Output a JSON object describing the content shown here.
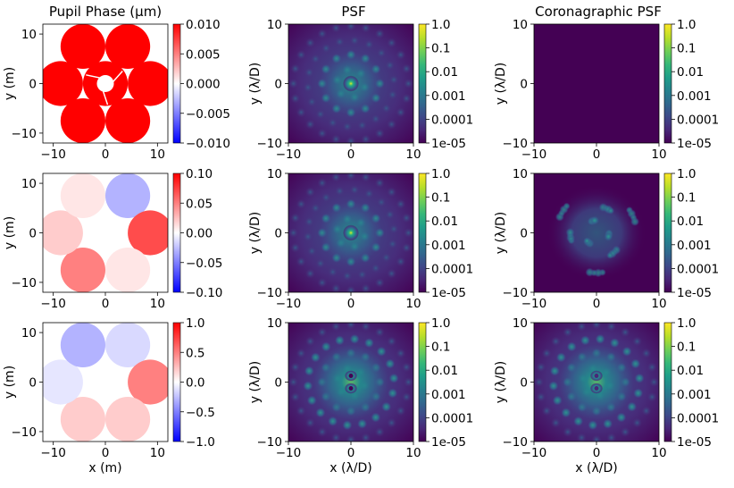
{
  "figure": {
    "column_titles": [
      "Pupil Phase (μm)",
      "PSF",
      "Coronagraphic PSF"
    ]
  },
  "colors": {
    "diverging": [
      "#0000ff",
      "#ffffff",
      "#ff0000"
    ],
    "viridis": [
      "#440154",
      "#482878",
      "#3e4989",
      "#31688e",
      "#26828e",
      "#1f9e89",
      "#35b779",
      "#6ece58",
      "#b5de2b",
      "#fde725"
    ]
  },
  "chart_data": [
    {
      "panel": "pupil-phase-row1",
      "type": "heatmap",
      "title": "Pupil Phase (μm)",
      "xlabel": "",
      "ylabel": "y (m)",
      "xlim": [
        -12,
        12
      ],
      "ylim": [
        -12,
        12
      ],
      "xticks": [
        "−10",
        "0",
        "10"
      ],
      "yticks": [
        "10",
        "0",
        "−10"
      ],
      "colorbar": {
        "cmap": "bwr",
        "range": [
          -0.01,
          0.01
        ],
        "ticks": [
          "0.010",
          "0.005",
          "0.000",
          "−0.005",
          "−0.010"
        ]
      },
      "segments": [
        {
          "x": 0,
          "y": 0,
          "value": 0.01
        },
        {
          "x": 4.3,
          "y": 7.5,
          "value": 0.01
        },
        {
          "x": 8.6,
          "y": 0,
          "value": 0.01
        },
        {
          "x": 4.3,
          "y": -7.5,
          "value": 0.01
        },
        {
          "x": -4.3,
          "y": -7.5,
          "value": 0.01
        },
        {
          "x": -8.6,
          "y": 0,
          "value": 0.01
        },
        {
          "x": -4.3,
          "y": 7.5,
          "value": 0.01
        }
      ]
    },
    {
      "panel": "psf-row1",
      "type": "heatmap",
      "title": "PSF",
      "xlabel": "",
      "ylabel": "y (λ/D)",
      "xlim": [
        -10,
        10
      ],
      "ylim": [
        -10,
        10
      ],
      "xticks": [
        "−10",
        "0",
        "10"
      ],
      "yticks": [
        "10",
        "0",
        "−10"
      ],
      "colorbar": {
        "cmap": "viridis",
        "scale": "log",
        "range": [
          1e-05,
          1
        ],
        "ticks": [
          "1.0",
          "0.1",
          "0.01",
          "0.001",
          "0.0001",
          "1e-05"
        ]
      }
    },
    {
      "panel": "coro-psf-row1",
      "type": "heatmap",
      "title": "Coronagraphic PSF",
      "xlabel": "",
      "ylabel": "y (λ/D)",
      "xlim": [
        -10,
        10
      ],
      "ylim": [
        -10,
        10
      ],
      "xticks": [
        "−10",
        "0",
        "10"
      ],
      "yticks": [
        "10",
        "0",
        "−10"
      ],
      "colorbar": {
        "cmap": "viridis",
        "scale": "log",
        "range": [
          1e-05,
          1
        ],
        "ticks": [
          "1.0",
          "0.1",
          "0.01",
          "0.001",
          "0.0001",
          "1e-05"
        ]
      }
    },
    {
      "panel": "pupil-phase-row2",
      "type": "heatmap",
      "title": "",
      "xlabel": "",
      "ylabel": "y (m)",
      "xlim": [
        -12,
        12
      ],
      "ylim": [
        -12,
        12
      ],
      "xticks": [
        "−10",
        "0",
        "10"
      ],
      "yticks": [
        "10",
        "0",
        "−10"
      ],
      "colorbar": {
        "cmap": "bwr",
        "range": [
          -0.1,
          0.1
        ],
        "ticks": [
          "0.10",
          "0.05",
          "0.00",
          "−0.05",
          "−0.10"
        ]
      },
      "segments": [
        {
          "x": 0,
          "y": 0,
          "value": 0.0
        },
        {
          "x": 4.3,
          "y": 7.5,
          "value": -0.03
        },
        {
          "x": 8.6,
          "y": 0,
          "value": 0.07
        },
        {
          "x": 4.3,
          "y": -7.5,
          "value": 0.01
        },
        {
          "x": -4.3,
          "y": -7.5,
          "value": 0.05
        },
        {
          "x": -8.6,
          "y": 0,
          "value": 0.02
        },
        {
          "x": -4.3,
          "y": 7.5,
          "value": 0.01
        }
      ]
    },
    {
      "panel": "psf-row2",
      "type": "heatmap",
      "title": "",
      "xlabel": "",
      "ylabel": "y (λ/D)",
      "xlim": [
        -10,
        10
      ],
      "ylim": [
        -10,
        10
      ],
      "xticks": [
        "−10",
        "0",
        "10"
      ],
      "yticks": [
        "10",
        "0",
        "−10"
      ],
      "colorbar": {
        "cmap": "viridis",
        "scale": "log",
        "range": [
          1e-05,
          1
        ],
        "ticks": [
          "1.0",
          "0.1",
          "0.01",
          "0.001",
          "0.0001",
          "1e-05"
        ]
      }
    },
    {
      "panel": "coro-psf-row2",
      "type": "heatmap",
      "title": "",
      "xlabel": "",
      "ylabel": "y (λ/D)",
      "xlim": [
        -10,
        10
      ],
      "ylim": [
        -10,
        10
      ],
      "xticks": [
        "−10",
        "0",
        "10"
      ],
      "yticks": [
        "10",
        "0",
        "−10"
      ],
      "colorbar": {
        "cmap": "viridis",
        "scale": "log",
        "range": [
          1e-05,
          1
        ],
        "ticks": [
          "1.0",
          "0.1",
          "0.01",
          "0.001",
          "0.0001",
          "1e-05"
        ]
      }
    },
    {
      "panel": "pupil-phase-row3",
      "type": "heatmap",
      "title": "",
      "xlabel": "x (m)",
      "ylabel": "y (m)",
      "xlim": [
        -12,
        12
      ],
      "ylim": [
        -12,
        12
      ],
      "xticks": [
        "−10",
        "0",
        "10"
      ],
      "yticks": [
        "10",
        "0",
        "−10"
      ],
      "colorbar": {
        "cmap": "bwr",
        "range": [
          -1,
          1
        ],
        "ticks": [
          "1.0",
          "0.5",
          "0.0",
          "−0.5",
          "−1.0"
        ]
      },
      "segments": [
        {
          "x": 0,
          "y": 0,
          "value": 0.0
        },
        {
          "x": 4.3,
          "y": 7.5,
          "value": -0.15
        },
        {
          "x": 8.6,
          "y": 0,
          "value": 0.5
        },
        {
          "x": 4.3,
          "y": -7.5,
          "value": 0.2
        },
        {
          "x": -4.3,
          "y": -7.5,
          "value": 0.2
        },
        {
          "x": -8.6,
          "y": 0,
          "value": -0.1
        },
        {
          "x": -4.3,
          "y": 7.5,
          "value": -0.3
        }
      ]
    },
    {
      "panel": "psf-row3",
      "type": "heatmap",
      "title": "",
      "xlabel": "x (λ/D)",
      "ylabel": "y (λ/D)",
      "xlim": [
        -10,
        10
      ],
      "ylim": [
        -10,
        10
      ],
      "xticks": [
        "−10",
        "0",
        "10"
      ],
      "yticks": [
        "10",
        "0",
        "−10"
      ],
      "colorbar": {
        "cmap": "viridis",
        "scale": "log",
        "range": [
          1e-05,
          1
        ],
        "ticks": [
          "1.0",
          "0.1",
          "0.01",
          "0.001",
          "0.0001",
          "1e-05"
        ]
      }
    },
    {
      "panel": "coro-psf-row3",
      "type": "heatmap",
      "title": "",
      "xlabel": "x (λ/D)",
      "ylabel": "y (λ/D)",
      "xlim": [
        -10,
        10
      ],
      "ylim": [
        -10,
        10
      ],
      "xticks": [
        "−10",
        "0",
        "10"
      ],
      "yticks": [
        "10",
        "0",
        "−10"
      ],
      "colorbar": {
        "cmap": "viridis",
        "scale": "log",
        "range": [
          1e-05,
          1
        ],
        "ticks": [
          "1.0",
          "0.1",
          "0.01",
          "0.001",
          "0.0001",
          "1e-05"
        ]
      }
    }
  ]
}
